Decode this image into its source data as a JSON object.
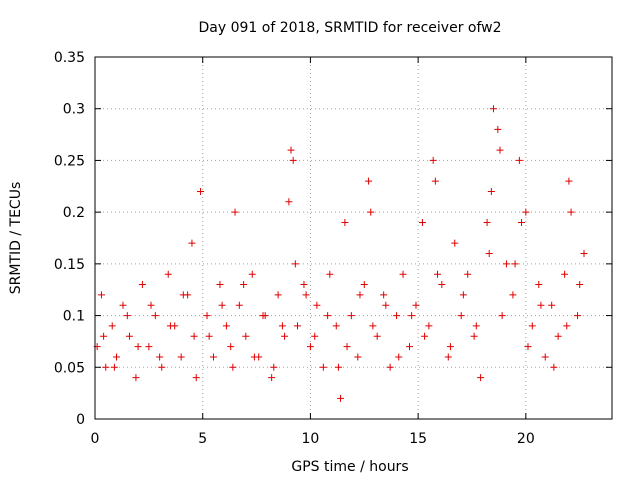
{
  "chart_data": {
    "type": "scatter",
    "title": "Day 091 of 2018, SRMTID for receiver ofw2",
    "xlabel": "GPS time / hours",
    "ylabel": "SRMTID / TECUs",
    "xlim": [
      0,
      24
    ],
    "ylim": [
      0,
      0.35
    ],
    "xticks": [
      0,
      5,
      10,
      15,
      20
    ],
    "xtick_labels": [
      "0",
      "5",
      "10",
      "15",
      "20"
    ],
    "yticks": [
      0,
      0.05,
      0.1,
      0.15,
      0.2,
      0.25,
      0.3,
      0.35
    ],
    "ytick_labels": [
      "0",
      "0.05",
      "0.1",
      "0.15",
      "0.2",
      "0.25",
      "0.3",
      "0.35"
    ],
    "grid": true,
    "marker": "+",
    "color": "#e00000",
    "series": [
      {
        "name": "SRMTID",
        "x": [
          0.1,
          0.3,
          0.5,
          0.8,
          1.0,
          1.3,
          1.6,
          1.9,
          2.2,
          2.5,
          2.8,
          3.1,
          3.4,
          3.7,
          4.0,
          4.3,
          4.5,
          4.6,
          4.9,
          5.2,
          5.5,
          5.8,
          6.1,
          6.4,
          6.5,
          6.7,
          7.0,
          7.3,
          7.6,
          7.9,
          8.2,
          8.5,
          8.8,
          9.0,
          9.1,
          9.2,
          9.4,
          9.7,
          10.0,
          10.3,
          10.6,
          10.9,
          11.2,
          11.4,
          11.6,
          11.9,
          12.2,
          12.5,
          12.7,
          12.8,
          13.1,
          13.4,
          13.7,
          14.0,
          14.3,
          14.6,
          14.9,
          15.2,
          15.5,
          15.7,
          15.8,
          16.1,
          16.4,
          16.7,
          17.0,
          17.3,
          17.6,
          17.9,
          18.2,
          18.4,
          18.5,
          18.7,
          18.8,
          19.1,
          19.4,
          19.7,
          19.8,
          20.0,
          20.3,
          20.6,
          20.9,
          21.2,
          21.5,
          21.8,
          22.0,
          22.1,
          22.4,
          22.7,
          0.4,
          0.9,
          1.5,
          2.0,
          2.6,
          3.0,
          3.5,
          4.1,
          4.7,
          5.3,
          5.9,
          6.3,
          6.9,
          7.4,
          7.8,
          8.3,
          8.7,
          9.3,
          9.8,
          10.2,
          10.8,
          11.3,
          11.7,
          12.3,
          12.9,
          13.5,
          14.1,
          14.7,
          15.3,
          15.9,
          16.5,
          17.1,
          17.7,
          18.3,
          18.9,
          19.5,
          20.1,
          20.7,
          21.3,
          21.9,
          22.5
        ],
        "y": [
          0.07,
          0.12,
          0.05,
          0.09,
          0.06,
          0.11,
          0.08,
          0.04,
          0.13,
          0.07,
          0.1,
          0.05,
          0.14,
          0.09,
          0.06,
          0.12,
          0.17,
          0.08,
          0.22,
          0.1,
          0.06,
          0.13,
          0.09,
          0.05,
          0.2,
          0.11,
          0.08,
          0.14,
          0.06,
          0.1,
          0.04,
          0.12,
          0.08,
          0.21,
          0.26,
          0.25,
          0.09,
          0.13,
          0.07,
          0.11,
          0.05,
          0.14,
          0.09,
          0.02,
          0.19,
          0.1,
          0.06,
          0.13,
          0.23,
          0.2,
          0.08,
          0.12,
          0.05,
          0.1,
          0.14,
          0.07,
          0.11,
          0.19,
          0.09,
          0.25,
          0.23,
          0.13,
          0.06,
          0.17,
          0.1,
          0.14,
          0.08,
          0.04,
          0.19,
          0.22,
          0.3,
          0.28,
          0.26,
          0.15,
          0.12,
          0.25,
          0.19,
          0.2,
          0.09,
          0.13,
          0.06,
          0.11,
          0.08,
          0.14,
          0.23,
          0.2,
          0.1,
          0.16,
          0.08,
          0.05,
          0.1,
          0.07,
          0.11,
          0.06,
          0.09,
          0.12,
          0.04,
          0.08,
          0.11,
          0.07,
          0.13,
          0.06,
          0.1,
          0.05,
          0.09,
          0.15,
          0.12,
          0.08,
          0.1,
          0.05,
          0.07,
          0.12,
          0.09,
          0.11,
          0.06,
          0.1,
          0.08,
          0.14,
          0.07,
          0.12,
          0.09,
          0.16,
          0.1,
          0.15,
          0.07,
          0.11,
          0.05,
          0.09,
          0.13
        ]
      }
    ]
  }
}
